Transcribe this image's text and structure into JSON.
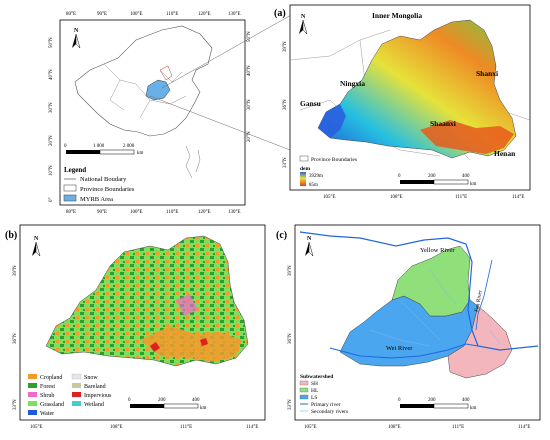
{
  "panel_a_inset": {
    "lon_ticks": [
      "80°E",
      "90°E",
      "100°E",
      "110°E",
      "120°E",
      "130°E"
    ],
    "lat_ticks": [
      "50°N",
      "40°N",
      "30°N",
      "20°N",
      "10°N",
      "0°"
    ],
    "north": "N",
    "scale": {
      "zero": "0",
      "mid": "1 000",
      "max": "2 000",
      "unit": "km"
    },
    "legend": {
      "title": "Legend",
      "items": [
        "National Boudary",
        "Province Boundaries",
        "MYRB Area"
      ]
    }
  },
  "panel_a": {
    "label": "(a)",
    "north": "N",
    "places": {
      "inner_mongolia": "Inner Mongolia",
      "ningxia": "Ningxia",
      "gansu": "Gansu",
      "shanxi": "Shanxi",
      "shaanxi": "Shaanxi",
      "henan": "Henan"
    },
    "lat_ticks": [
      "39°N",
      "36°N",
      "33°N"
    ],
    "lon_ticks": [
      "105°E",
      "108°E",
      "111°E",
      "114°E"
    ],
    "legend": {
      "boundary": "Province Boundaries",
      "dem_title": "dem",
      "dem_high": "3929m",
      "dem_low": "85m"
    },
    "scale": {
      "zero": "0",
      "mid": "200",
      "max": "400",
      "unit": "km"
    }
  },
  "panel_b": {
    "label": "(b)",
    "north": "N",
    "lat_ticks": [
      "39°N",
      "36°N",
      "33°N"
    ],
    "lon_ticks": [
      "105°E",
      "108°E",
      "111°E",
      "114°E"
    ],
    "legend_items": [
      {
        "label": "Cropland",
        "color": "#f39a2c"
      },
      {
        "label": "Forest",
        "color": "#2f9e2f"
      },
      {
        "label": "Shrub",
        "color": "#f06acb"
      },
      {
        "label": "Grassland",
        "color": "#7ee05a"
      },
      {
        "label": "Water",
        "color": "#1f5bd6"
      },
      {
        "label": "Snow",
        "color": "#e6e6e6"
      },
      {
        "label": "Bareland",
        "color": "#c9c9a0"
      },
      {
        "label": "Impervious",
        "color": "#e02020"
      },
      {
        "label": "Wetland",
        "color": "#3fd0c8"
      }
    ],
    "scale": {
      "zero": "0",
      "mid": "200",
      "max": "400",
      "unit": "km"
    }
  },
  "panel_c": {
    "label": "(c)",
    "north": "N",
    "lat_ticks": [
      "39°N",
      "36°N",
      "33°N"
    ],
    "lon_ticks": [
      "105°E",
      "108°E",
      "111°E",
      "114°E"
    ],
    "rivers": {
      "yellow": "Yellow River",
      "wei": "Wei River",
      "fen": "Fen River"
    },
    "legend": {
      "title": "Subwatershed",
      "items": [
        {
          "label": "SH",
          "color": "#f4b6bd"
        },
        {
          "label": "HL",
          "color": "#8fe07a"
        },
        {
          "label": "LS",
          "color": "#4aa6ef"
        }
      ],
      "primary": "Primary river",
      "secondary": "Secondary rivers"
    },
    "scale": {
      "zero": "0",
      "mid": "200",
      "max": "400",
      "unit": "km"
    }
  },
  "colors": {
    "dem_high": "#2a5fe0",
    "dem_mid": "#e8e23a",
    "dem_low": "#e83a1c",
    "myrb": "#6ab0e8",
    "river": "#2266dd"
  }
}
